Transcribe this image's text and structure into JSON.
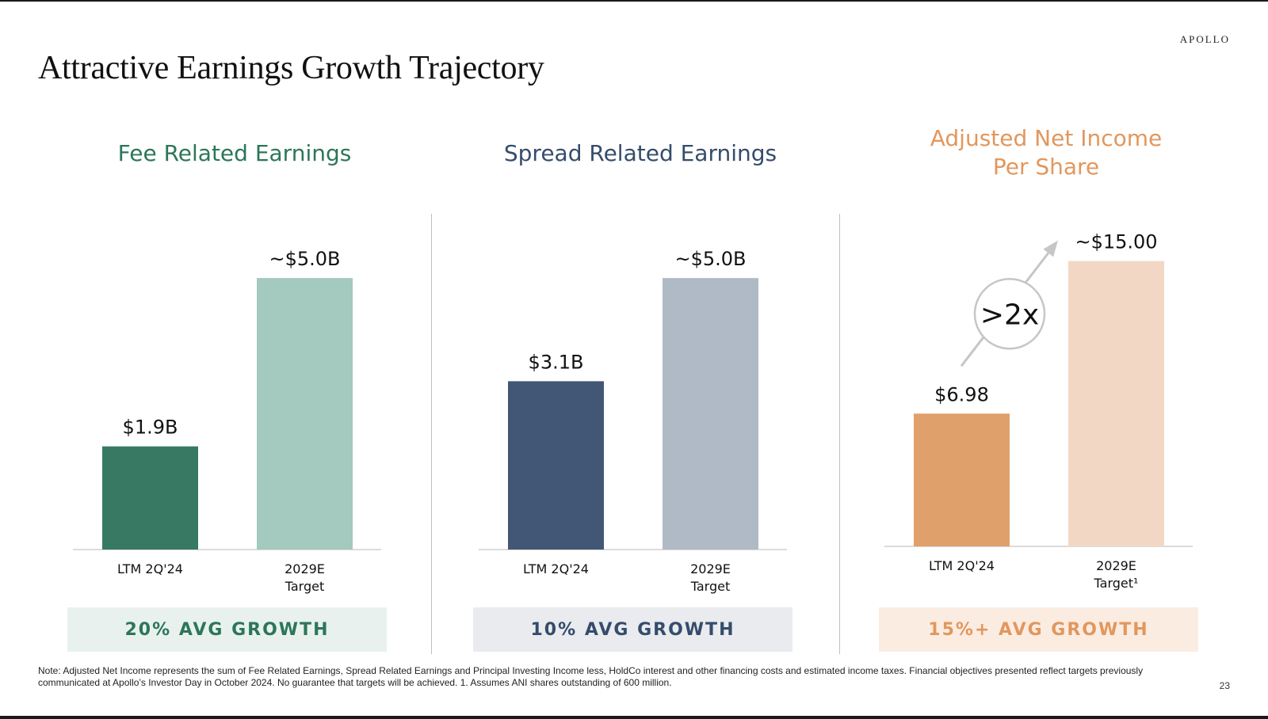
{
  "slide": {
    "brand": "APOLLO",
    "title": "Attractive Earnings Growth Trajectory",
    "footnote": "Note: Adjusted Net Income represents the sum of Fee Related Earnings, Spread Related Earnings and Principal Investing Income less, HoldCo interest and other financing costs and estimated income taxes. Financial objectives presented reflect targets previously communicated at Apollo’s Investor Day in October 2024. No guarantee that targets will be achieved. 1. Assumes ANI shares outstanding of 600 million.",
    "page_number": "23"
  },
  "chart_data": [
    {
      "type": "bar",
      "title": "Fee Related Earnings",
      "title_lines": [
        "Fee Related Earnings"
      ],
      "categories": [
        "LTM 2Q'24",
        "2029E Target"
      ],
      "category_lines": [
        [
          "LTM 2Q'24"
        ],
        [
          "2029E",
          "Target"
        ]
      ],
      "values": [
        1.9,
        5.0
      ],
      "labels": [
        "$1.9B",
        "~$5.0B"
      ],
      "unit": "$B",
      "ylim": [
        0,
        5.6
      ],
      "growth_label": "20% AVG GROWTH",
      "colors": [
        "#377963",
        "#a4c9bf"
      ],
      "title_color": "#2c7659",
      "growth_text_color": "#2c7659",
      "growth_bg_color": "#e9f1ee"
    },
    {
      "type": "bar",
      "title": "Spread Related Earnings",
      "title_lines": [
        "Spread Related Earnings"
      ],
      "categories": [
        "LTM 2Q'24",
        "2029E Target"
      ],
      "category_lines": [
        [
          "LTM 2Q'24"
        ],
        [
          "2029E",
          "Target"
        ]
      ],
      "values": [
        3.1,
        5.0
      ],
      "labels": [
        "$3.1B",
        "~$5.0B"
      ],
      "unit": "$B",
      "ylim": [
        0,
        5.6
      ],
      "growth_label": "10% AVG GROWTH",
      "colors": [
        "#425775",
        "#b0bac6"
      ],
      "title_color": "#354c6b",
      "growth_text_color": "#354c6b",
      "growth_bg_color": "#e9ebef"
    },
    {
      "type": "bar",
      "title": "Adjusted Net Income Per Share",
      "title_lines": [
        "Adjusted Net Income",
        "Per Share"
      ],
      "categories": [
        "LTM 2Q'24",
        "2029E Target¹"
      ],
      "category_lines": [
        [
          "LTM 2Q'24"
        ],
        [
          "2029E",
          "Target¹"
        ]
      ],
      "values": [
        6.98,
        15.0
      ],
      "labels": [
        "$6.98",
        "~$15.00"
      ],
      "unit": "$",
      "ylim": [
        0,
        16.4
      ],
      "growth_label": "15%+ AVG GROWTH",
      "annotation": ">2x",
      "colors": [
        "#e0a06b",
        "#f2d8c4"
      ],
      "title_color": "#e2975c",
      "growth_text_color": "#e2975c",
      "growth_bg_color": "#fbece2"
    }
  ]
}
